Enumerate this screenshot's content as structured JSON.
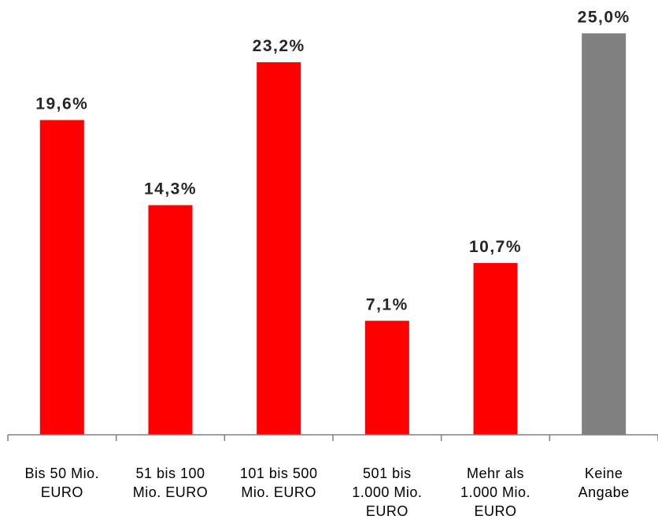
{
  "chart_data": {
    "type": "bar",
    "categories": [
      [
        "Bis 50 Mio.",
        "EURO"
      ],
      [
        "51 bis 100",
        "Mio. EURO"
      ],
      [
        "101 bis 500",
        "Mio. EURO"
      ],
      [
        "501 bis",
        "1.000 Mio.",
        "EURO"
      ],
      [
        "Mehr als",
        "1.000 Mio.",
        "EURO"
      ],
      [
        "Keine",
        "Angabe"
      ]
    ],
    "values": [
      19.6,
      14.3,
      23.2,
      7.1,
      10.7,
      25.0
    ],
    "value_labels": [
      "19,6%",
      "14,3%",
      "23,2%",
      "7,1%",
      "10,7%",
      "25,0%"
    ],
    "bar_colors": [
      "#ff0000",
      "#ff0000",
      "#ff0000",
      "#ff0000",
      "#ff0000",
      "#808080"
    ],
    "ylim": [
      0,
      25.9
    ],
    "title": "",
    "xlabel": "",
    "ylabel": "",
    "grid": false,
    "legend": "none"
  }
}
